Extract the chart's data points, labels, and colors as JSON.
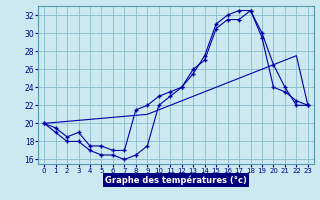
{
  "title": "Graphe des températures (°c)",
  "background_color": "#cce8f0",
  "grid_color": "#88bbcc",
  "line_color": "#0000aa",
  "xlim": [
    -0.5,
    23.5
  ],
  "ylim": [
    15.5,
    33
  ],
  "xticks": [
    0,
    1,
    2,
    3,
    4,
    5,
    6,
    7,
    8,
    9,
    10,
    11,
    12,
    13,
    14,
    15,
    16,
    17,
    18,
    19,
    20,
    21,
    22,
    23
  ],
  "yticks": [
    16,
    18,
    20,
    22,
    24,
    26,
    28,
    30,
    32
  ],
  "line1_high": {
    "x": [
      0,
      1,
      2,
      3,
      4,
      5,
      6,
      7,
      8,
      9,
      10,
      11,
      12,
      13,
      14,
      15,
      16,
      17,
      18,
      19,
      20,
      21,
      22,
      23
    ],
    "y": [
      20,
      19.5,
      18.5,
      19,
      17.5,
      17.5,
      17,
      17,
      21.5,
      22,
      23,
      23.5,
      24,
      26,
      27,
      30.5,
      31.5,
      31.5,
      32.5,
      30,
      26.5,
      24,
      22,
      22
    ]
  },
  "line2_low": {
    "x": [
      0,
      1,
      2,
      3,
      4,
      5,
      6,
      7,
      8,
      9,
      10,
      11,
      12,
      13,
      14,
      15,
      16,
      17,
      18,
      19,
      20,
      21,
      22,
      23
    ],
    "y": [
      20,
      19,
      18,
      18,
      17,
      16.5,
      16.5,
      16,
      16.5,
      17.5,
      22,
      23,
      24,
      25.5,
      27.5,
      31,
      32,
      32.5,
      32.5,
      29.5,
      24,
      23.5,
      22.5,
      22
    ]
  },
  "line3_diag": {
    "x": [
      0,
      9,
      10,
      11,
      12,
      13,
      14,
      15,
      16,
      17,
      18,
      19,
      20,
      21,
      22,
      23
    ],
    "y": [
      20,
      21,
      21.5,
      22,
      22.5,
      23,
      23.5,
      24,
      24.5,
      25,
      25.5,
      26,
      26.5,
      27,
      27.5,
      22
    ]
  }
}
